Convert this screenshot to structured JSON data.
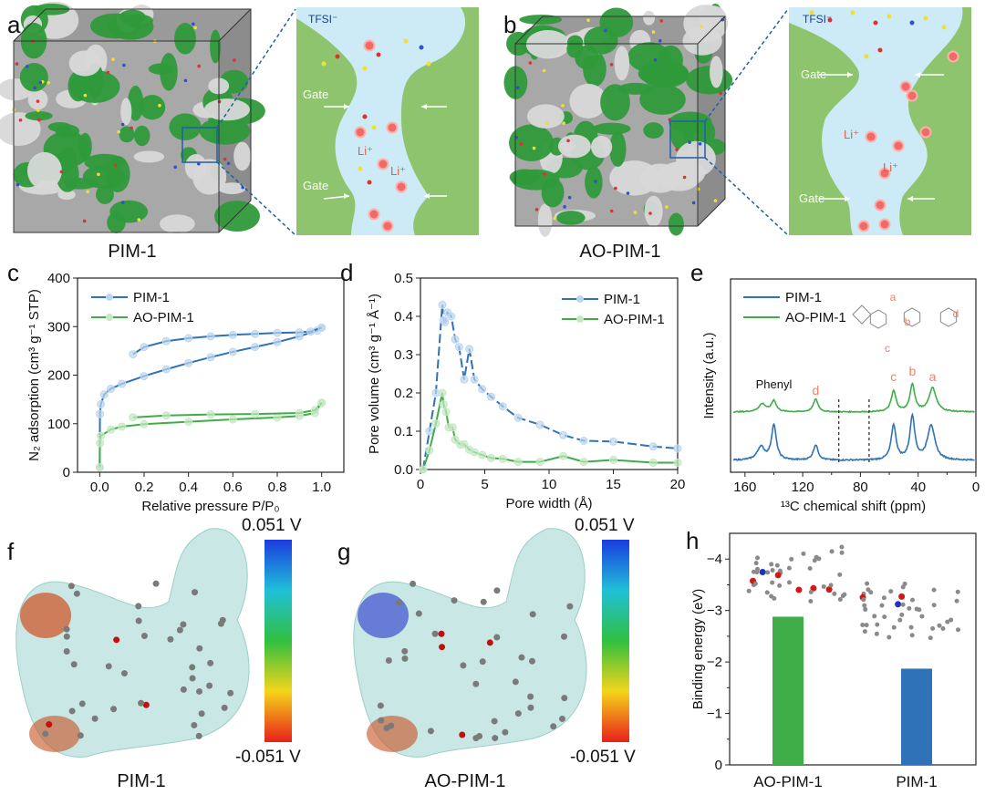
{
  "panels": {
    "a": {
      "label": "a",
      "caption": "PIM-1"
    },
    "b": {
      "label": "b",
      "caption": "AO-PIM-1"
    },
    "c": {
      "label": "c"
    },
    "d": {
      "label": "d"
    },
    "e": {
      "label": "e"
    },
    "f": {
      "label": "f",
      "caption": "PIM-1",
      "cbar_max": "0.051 V",
      "cbar_min": "-0.051 V"
    },
    "g": {
      "label": "g",
      "caption": "AO-PIM-1",
      "cbar_max": "0.051 V",
      "cbar_min": "-0.051 V"
    },
    "h": {
      "label": "h"
    }
  },
  "schematic": {
    "anion": "TFSI⁻",
    "gate": "Gate",
    "cation": "Li⁺"
  },
  "colors": {
    "pim1": "#2f72b8",
    "aopim1": "#3fae49",
    "pim1_marker": "#bcd6f0",
    "aopim1_marker": "#c4e8c2",
    "pore_fill": "#cdeaf7",
    "matrix": "#8fc46e",
    "annotation": "#f0826a"
  },
  "chart_data": [
    {
      "id": "c",
      "type": "line",
      "xlabel": "Relative pressure P/P₀",
      "ylabel": "N₂ adsorption (cm³ g⁻¹ STP)",
      "xlim": [
        -0.1,
        1.1
      ],
      "ylim": [
        0,
        400
      ],
      "xticks": [
        "0.0",
        "0.2",
        "0.4",
        "0.6",
        "0.8",
        "1.0"
      ],
      "yticks": [
        "0",
        "100",
        "200",
        "300",
        "400"
      ],
      "legend": "top-left",
      "series": [
        {
          "name": "PIM-1",
          "adsorption": [
            [
              0,
              10
            ],
            [
              0.001,
              120
            ],
            [
              0.005,
              140
            ],
            [
              0.02,
              160
            ],
            [
              0.05,
              172
            ],
            [
              0.1,
              182
            ],
            [
              0.2,
              198
            ],
            [
              0.3,
              212
            ],
            [
              0.4,
              225
            ],
            [
              0.5,
              237
            ],
            [
              0.6,
              248
            ],
            [
              0.7,
              258
            ],
            [
              0.8,
              268
            ],
            [
              0.9,
              280
            ],
            [
              0.98,
              292
            ],
            [
              1.0,
              298
            ]
          ],
          "desorption": [
            [
              1.0,
              298
            ],
            [
              0.95,
              290
            ],
            [
              0.9,
              288
            ],
            [
              0.8,
              287
            ],
            [
              0.7,
              285
            ],
            [
              0.6,
              283
            ],
            [
              0.5,
              280
            ],
            [
              0.4,
              276
            ],
            [
              0.3,
              270
            ],
            [
              0.2,
              258
            ],
            [
              0.15,
              243
            ]
          ]
        },
        {
          "name": "AO-PIM-1",
          "adsorption": [
            [
              0,
              10
            ],
            [
              0.001,
              60
            ],
            [
              0.005,
              75
            ],
            [
              0.05,
              88
            ],
            [
              0.1,
              94
            ],
            [
              0.2,
              99
            ],
            [
              0.4,
              104
            ],
            [
              0.6,
              109
            ],
            [
              0.8,
              113
            ],
            [
              0.9,
              116
            ],
            [
              0.97,
              122
            ],
            [
              1.0,
              143
            ]
          ],
          "desorption": [
            [
              1.0,
              143
            ],
            [
              0.97,
              128
            ],
            [
              0.9,
              122
            ],
            [
              0.7,
              120
            ],
            [
              0.5,
              119
            ],
            [
              0.3,
              117
            ],
            [
              0.15,
              113
            ]
          ]
        }
      ]
    },
    {
      "id": "d",
      "type": "line",
      "xlabel": "Pore width (Å)",
      "ylabel": "Pore volume (cm³ g⁻¹ Å⁻¹)",
      "xlim": [
        0,
        20
      ],
      "ylim": [
        0,
        0.5
      ],
      "xticks": [
        "0",
        "5",
        "10",
        "15",
        "20"
      ],
      "yticks": [
        "0.0",
        "0.1",
        "0.2",
        "0.3",
        "0.4",
        "0.5"
      ],
      "legend": "top-right",
      "series": [
        {
          "name": "PIM-1",
          "points": [
            [
              0.2,
              0
            ],
            [
              0.7,
              0.1
            ],
            [
              1.2,
              0.2
            ],
            [
              1.7,
              0.43
            ],
            [
              1.8,
              0.39
            ],
            [
              1.9,
              0.385
            ],
            [
              2.1,
              0.41
            ],
            [
              2.4,
              0.4
            ],
            [
              2.7,
              0.34
            ],
            [
              3.0,
              0.32
            ],
            [
              3.4,
              0.235
            ],
            [
              3.8,
              0.315
            ],
            [
              4.2,
              0.235
            ],
            [
              4.8,
              0.21
            ],
            [
              5.5,
              0.19
            ],
            [
              6.4,
              0.165
            ],
            [
              7.6,
              0.135
            ],
            [
              9.3,
              0.117
            ],
            [
              11.1,
              0.09
            ],
            [
              12.7,
              0.075
            ],
            [
              15,
              0.073
            ],
            [
              18.1,
              0.06
            ],
            [
              20,
              0.055
            ]
          ]
        },
        {
          "name": "AO-PIM-1",
          "points": [
            [
              0.2,
              0
            ],
            [
              0.7,
              0.05
            ],
            [
              1.2,
              0.12
            ],
            [
              1.7,
              0.2
            ],
            [
              1.8,
              0.17
            ],
            [
              2.0,
              0.15
            ],
            [
              2.2,
              0.11
            ],
            [
              2.5,
              0.11
            ],
            [
              2.7,
              0.078
            ],
            [
              3.1,
              0.065
            ],
            [
              3.4,
              0.066
            ],
            [
              3.8,
              0.052
            ],
            [
              4.2,
              0.045
            ],
            [
              4.8,
              0.038
            ],
            [
              5.5,
              0.03
            ],
            [
              6.4,
              0.028
            ],
            [
              7.6,
              0.02
            ],
            [
              9.3,
              0.02
            ],
            [
              11.1,
              0.035
            ],
            [
              12.7,
              0.02
            ],
            [
              15,
              0.025
            ],
            [
              18.1,
              0.018
            ],
            [
              20,
              0.018
            ]
          ]
        }
      ]
    },
    {
      "id": "e",
      "type": "line",
      "xlabel": "¹³C chemical shift (ppm)",
      "ylabel": "Intensity (a.u.)",
      "xlim": [
        170,
        0
      ],
      "xticks": [
        "160",
        "120",
        "80",
        "40",
        "0"
      ],
      "legend": "top-left",
      "dashed_lines_ppm": [
        95,
        74
      ],
      "annotations": [
        "Phenyl",
        "d",
        "c",
        "b",
        "a"
      ],
      "structure_labels": [
        "a",
        "b",
        "c",
        "d"
      ],
      "series": [
        {
          "name": "PIM-1",
          "peaks_ppm": [
            149,
            140,
            111,
            57,
            44,
            31
          ],
          "relative_heights": [
            0.3,
            0.8,
            0.35,
            0.8,
            1.0,
            0.8
          ]
        },
        {
          "name": "AO-PIM-1",
          "peaks_ppm": [
            148,
            140,
            111,
            57,
            44,
            30
          ],
          "relative_heights": [
            0.25,
            0.35,
            0.4,
            0.65,
            0.85,
            0.75
          ]
        }
      ]
    },
    {
      "id": "h",
      "type": "bar",
      "ylabel": "Binding energy (eV)",
      "ylim": [
        0,
        -4.5
      ],
      "yticks": [
        "0",
        "−1",
        "−2",
        "−3",
        "−4"
      ],
      "categories": [
        "AO-PIM-1",
        "PIM-1"
      ],
      "values": [
        -2.88,
        -1.87
      ]
    }
  ]
}
